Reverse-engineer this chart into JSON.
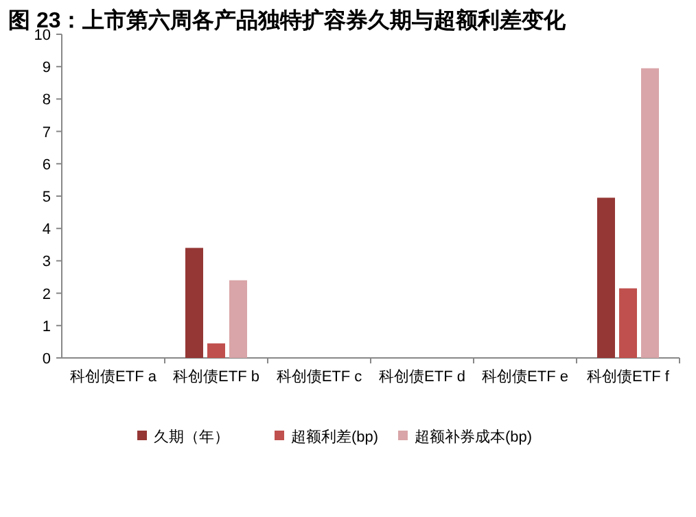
{
  "chart_data": {
    "type": "bar",
    "title": "图 23：上市第六周各产品独特扩容券久期与超额利差变化",
    "categories": [
      "科创债ETF  a",
      "科创债ETF  b",
      "科创债ETF  c",
      "科创债ETF  d",
      "科创债ETF  e",
      "科创债ETF  f"
    ],
    "series": [
      {
        "name": "久期（年）",
        "color": "#953735",
        "values": [
          null,
          3.4,
          null,
          null,
          null,
          4.95
        ]
      },
      {
        "name": "超额利差(bp)",
        "color": "#c0504d",
        "values": [
          null,
          0.45,
          null,
          null,
          null,
          2.15
        ]
      },
      {
        "name": "超额补券成本(bp)",
        "color": "#d9a5a8",
        "values": [
          null,
          2.4,
          null,
          null,
          null,
          8.95
        ]
      }
    ],
    "ylim": [
      0,
      10
    ],
    "yticks": [
      0,
      1,
      2,
      3,
      4,
      5,
      6,
      7,
      8,
      9,
      10
    ],
    "grid": false,
    "legend": "bottom"
  }
}
